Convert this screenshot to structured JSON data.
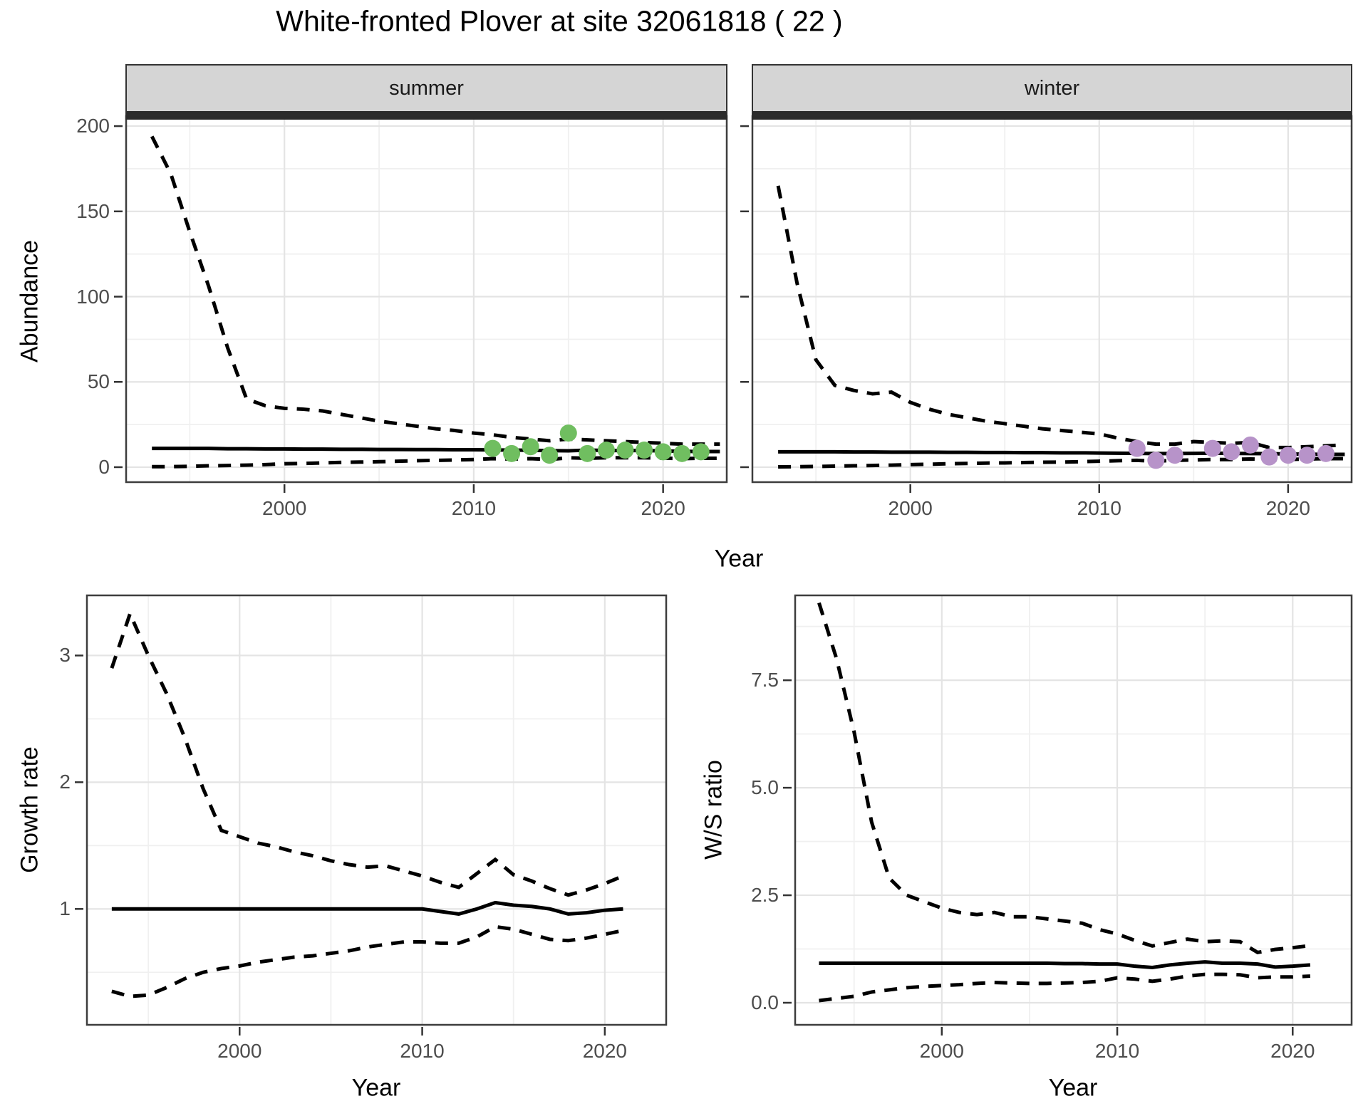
{
  "title": "White-fronted Plover at site 32061818 ( 22 )",
  "facets": {
    "summer": "summer",
    "winter": "winter"
  },
  "axis_titles": {
    "abundance": "Abundance",
    "year": "Year",
    "growth_rate": "Growth rate",
    "ws_ratio": "W/S ratio"
  },
  "colors": {
    "summer_points": "#70BE60",
    "winter_points": "#B793C9",
    "line": "#000000",
    "panel_border": "#3d3d3d",
    "grid_major": "#e4e4e4",
    "grid_minor": "#f0f0f0",
    "strip_bg": "#d5d5d5",
    "tick_text": "#4d4d4d"
  },
  "chart_data": [
    {
      "id": "summer",
      "type": "line",
      "facet_label": "summer",
      "xlabel": "Year",
      "ylabel": "Abundance",
      "xlim": [
        1991.6,
        2023.4
      ],
      "ylim": [
        -9.2,
        206.3
      ],
      "x_major_ticks": [
        2000,
        2010,
        2020
      ],
      "x_tick_labels": [
        "2000",
        "2010",
        "2020"
      ],
      "x_minor_ticks": [
        1995,
        2005,
        2015
      ],
      "y_major_ticks": [
        0,
        50,
        100,
        150,
        200
      ],
      "y_tick_labels": [
        "0",
        "50",
        "100",
        "150",
        "200"
      ],
      "y_minor_ticks": [
        25,
        75,
        125,
        175
      ],
      "series": [
        {
          "name": "median",
          "style": "solid",
          "x": [
            1993,
            1994,
            1995,
            1996,
            1997,
            1998,
            1999,
            2000,
            2001,
            2002,
            2003,
            2004,
            2005,
            2006,
            2007,
            2008,
            2009,
            2010,
            2011,
            2012,
            2013,
            2014,
            2015,
            2016,
            2017,
            2018,
            2019,
            2020,
            2021,
            2022,
            2023
          ],
          "y": [
            11,
            11,
            11,
            11,
            10.8,
            10.8,
            10.7,
            10.7,
            10.6,
            10.6,
            10.5,
            10.5,
            10.4,
            10.4,
            10.3,
            10.3,
            10.2,
            10.2,
            10.1,
            10,
            9.9,
            9.7,
            9.6,
            10,
            9.8,
            9.7,
            9.8,
            9.5,
            9.3,
            9.2,
            9.2
          ]
        },
        {
          "name": "upper_ci",
          "style": "dashed",
          "x": [
            1993,
            1994,
            1995,
            1996,
            1997,
            1998,
            1999,
            2000,
            2001,
            2002,
            2003,
            2004,
            2005,
            2006,
            2007,
            2008,
            2009,
            2010,
            2011,
            2012,
            2013,
            2014,
            2015,
            2016,
            2017,
            2018,
            2019,
            2020,
            2021,
            2022,
            2023
          ],
          "y": [
            194,
            172,
            138,
            106,
            70,
            40,
            36,
            34.5,
            34,
            33,
            31,
            29,
            27,
            25.5,
            24,
            22.5,
            21.5,
            20,
            19,
            17.5,
            16.5,
            15.5,
            16.5,
            16,
            15.5,
            15,
            14.5,
            14,
            13.5,
            13.5,
            13.5
          ]
        },
        {
          "name": "lower_ci",
          "style": "dashed",
          "x": [
            1993,
            1994,
            1995,
            1996,
            1997,
            1998,
            1999,
            2000,
            2001,
            2002,
            2003,
            2004,
            2005,
            2006,
            2007,
            2008,
            2009,
            2010,
            2011,
            2012,
            2013,
            2014,
            2015,
            2016,
            2017,
            2018,
            2019,
            2020,
            2021,
            2022,
            2023
          ],
          "y": [
            0.3,
            0.3,
            0.5,
            0.8,
            1,
            1.2,
            1.5,
            2,
            2.2,
            2.5,
            2.8,
            3,
            3.2,
            3.5,
            3.8,
            4,
            4.2,
            4.5,
            5,
            4.8,
            5,
            4.5,
            5.5,
            5.2,
            5.5,
            5.5,
            5.5,
            5.3,
            5,
            5.2,
            5.2
          ]
        }
      ],
      "points": {
        "name": "observed-count",
        "color": "#70BE60",
        "x": [
          2011,
          2012,
          2013,
          2014,
          2015,
          2016,
          2017,
          2018,
          2019,
          2020,
          2021,
          2022
        ],
        "y": [
          11,
          8,
          12,
          7,
          20,
          8,
          10,
          10,
          10,
          9,
          8,
          9
        ]
      }
    },
    {
      "id": "winter",
      "type": "line",
      "facet_label": "winter",
      "xlabel": "Year",
      "ylabel": "Abundance",
      "xlim": [
        1991.6,
        2023.4
      ],
      "ylim": [
        -9.2,
        206.3
      ],
      "x_major_ticks": [
        2000,
        2010,
        2020
      ],
      "x_tick_labels": [
        "2000",
        "2010",
        "2020"
      ],
      "x_minor_ticks": [
        1995,
        2005,
        2015
      ],
      "y_major_ticks": [
        0,
        50,
        100,
        150,
        200
      ],
      "y_tick_labels": [
        "0",
        "50",
        "100",
        "150",
        "200"
      ],
      "y_minor_ticks": [
        25,
        75,
        125,
        175
      ],
      "series": [
        {
          "name": "median",
          "style": "solid",
          "x": [
            1993,
            1994,
            1995,
            1996,
            1997,
            1998,
            1999,
            2000,
            2001,
            2002,
            2003,
            2004,
            2005,
            2006,
            2007,
            2008,
            2009,
            2010,
            2011,
            2012,
            2013,
            2014,
            2015,
            2016,
            2017,
            2018,
            2019,
            2020,
            2021,
            2022,
            2023
          ],
          "y": [
            9,
            9,
            9,
            9,
            8.9,
            8.9,
            8.8,
            8.8,
            8.8,
            8.7,
            8.7,
            8.6,
            8.6,
            8.5,
            8.5,
            8.4,
            8.4,
            8.3,
            8.2,
            8.1,
            8,
            8,
            8.1,
            8.2,
            8.1,
            8,
            7.9,
            7.7,
            7.6,
            7.5,
            7.5
          ]
        },
        {
          "name": "upper_ci",
          "style": "dashed",
          "x": [
            1993,
            1994,
            1995,
            1996,
            1997,
            1998,
            1999,
            2000,
            2001,
            2002,
            2003,
            2004,
            2005,
            2006,
            2007,
            2008,
            2009,
            2010,
            2011,
            2012,
            2013,
            2014,
            2015,
            2016,
            2017,
            2018,
            2019,
            2020,
            2021,
            2022,
            2023
          ],
          "y": [
            165,
            108,
            63,
            48,
            45,
            43,
            44,
            38,
            34,
            31,
            29,
            27,
            25.5,
            24,
            22.5,
            21.5,
            20.5,
            19.5,
            17,
            15,
            13.5,
            13.5,
            15,
            14.5,
            14,
            14.5,
            11.5,
            11.5,
            12,
            12.5,
            13
          ]
        },
        {
          "name": "lower_ci",
          "style": "dashed",
          "x": [
            1993,
            1994,
            1995,
            1996,
            1997,
            1998,
            1999,
            2000,
            2001,
            2002,
            2003,
            2004,
            2005,
            2006,
            2007,
            2008,
            2009,
            2010,
            2011,
            2012,
            2013,
            2014,
            2015,
            2016,
            2017,
            2018,
            2019,
            2020,
            2021,
            2022,
            2023
          ],
          "y": [
            0.2,
            0.3,
            0.4,
            0.6,
            0.8,
            1,
            1.2,
            1.5,
            1.7,
            2,
            2.2,
            2.4,
            2.5,
            2.7,
            2.9,
            3,
            3.2,
            3.5,
            3.8,
            4,
            3.5,
            4,
            4.2,
            4.5,
            4.5,
            4.8,
            4.5,
            4.5,
            4.8,
            5,
            5
          ]
        }
      ],
      "points": {
        "name": "observed-count",
        "color": "#B793C9",
        "x": [
          2012,
          2013,
          2014,
          2016,
          2017,
          2018,
          2019,
          2020,
          2021,
          2022
        ],
        "y": [
          11,
          4,
          7,
          11,
          9,
          13,
          6,
          7,
          7,
          8
        ]
      }
    },
    {
      "id": "growth",
      "type": "line",
      "facet_label": "",
      "xlabel": "Year",
      "ylabel": "Growth rate",
      "xlim": [
        1991.6,
        2023.4
      ],
      "ylim": [
        0.08,
        3.48
      ],
      "x_major_ticks": [
        2000,
        2010,
        2020
      ],
      "x_tick_labels": [
        "2000",
        "2010",
        "2020"
      ],
      "x_minor_ticks": [
        1995,
        2005,
        2015
      ],
      "y_major_ticks": [
        1,
        2,
        3
      ],
      "y_tick_labels": [
        "1",
        "2",
        "3"
      ],
      "y_minor_ticks": [
        0.5,
        1.5,
        2.5
      ],
      "series": [
        {
          "name": "median",
          "style": "solid",
          "x": [
            1993,
            1994,
            1995,
            1996,
            1997,
            1998,
            1999,
            2000,
            2001,
            2002,
            2003,
            2004,
            2005,
            2006,
            2007,
            2008,
            2009,
            2010,
            2011,
            2012,
            2013,
            2014,
            2015,
            2016,
            2017,
            2018,
            2019,
            2020,
            2021
          ],
          "y": [
            1,
            1,
            1,
            1,
            1,
            1,
            1,
            1,
            1,
            1,
            1,
            1,
            1,
            1,
            1,
            1,
            1,
            1,
            0.98,
            0.96,
            1,
            1.05,
            1.03,
            1.02,
            1,
            0.96,
            0.97,
            0.99,
            1
          ]
        },
        {
          "name": "upper_ci",
          "style": "dashed",
          "x": [
            1993,
            1994,
            1995,
            1996,
            1997,
            1998,
            1999,
            2000,
            2001,
            2002,
            2003,
            2004,
            2005,
            2006,
            2007,
            2008,
            2009,
            2010,
            2011,
            2012,
            2013,
            2014,
            2015,
            2016,
            2017,
            2018,
            2019,
            2020,
            2021
          ],
          "y": [
            2.9,
            3.33,
            3.0,
            2.7,
            2.35,
            1.95,
            1.62,
            1.57,
            1.52,
            1.49,
            1.45,
            1.42,
            1.38,
            1.35,
            1.33,
            1.34,
            1.3,
            1.26,
            1.21,
            1.17,
            1.28,
            1.39,
            1.27,
            1.22,
            1.16,
            1.11,
            1.15,
            1.2,
            1.26
          ]
        },
        {
          "name": "lower_ci",
          "style": "dashed",
          "x": [
            1993,
            1994,
            1995,
            1996,
            1997,
            1998,
            1999,
            2000,
            2001,
            2002,
            2003,
            2004,
            2005,
            2006,
            2007,
            2008,
            2009,
            2010,
            2011,
            2012,
            2013,
            2014,
            2015,
            2016,
            2017,
            2018,
            2019,
            2020,
            2021
          ],
          "y": [
            0.35,
            0.31,
            0.32,
            0.38,
            0.45,
            0.5,
            0.53,
            0.55,
            0.58,
            0.6,
            0.62,
            0.63,
            0.65,
            0.67,
            0.7,
            0.72,
            0.74,
            0.74,
            0.73,
            0.73,
            0.78,
            0.86,
            0.84,
            0.8,
            0.76,
            0.75,
            0.77,
            0.8,
            0.83
          ]
        }
      ],
      "points": null
    },
    {
      "id": "ws",
      "type": "line",
      "facet_label": "",
      "xlabel": "Year",
      "ylabel": "W/S ratio",
      "xlim": [
        1991.6,
        2023.4
      ],
      "ylim": [
        -0.53,
        9.49
      ],
      "x_major_ticks": [
        2000,
        2010,
        2020
      ],
      "x_tick_labels": [
        "2000",
        "2010",
        "2020"
      ],
      "x_minor_ticks": [
        1995,
        2005,
        2015
      ],
      "y_major_ticks": [
        0,
        2.5,
        5.0,
        7.5
      ],
      "y_tick_labels": [
        "0.0",
        "2.5",
        "5.0",
        "7.5"
      ],
      "y_minor_ticks": [
        1.25,
        3.75,
        6.25,
        8.75
      ],
      "series": [
        {
          "name": "median",
          "style": "solid",
          "x": [
            1993,
            1994,
            1995,
            1996,
            1997,
            1998,
            1999,
            2000,
            2001,
            2002,
            2003,
            2004,
            2005,
            2006,
            2007,
            2008,
            2009,
            2010,
            2011,
            2012,
            2013,
            2014,
            2015,
            2016,
            2017,
            2018,
            2019,
            2020,
            2021
          ],
          "y": [
            0.92,
            0.92,
            0.92,
            0.92,
            0.92,
            0.92,
            0.92,
            0.92,
            0.92,
            0.92,
            0.92,
            0.92,
            0.92,
            0.92,
            0.91,
            0.91,
            0.9,
            0.9,
            0.85,
            0.82,
            0.88,
            0.92,
            0.95,
            0.92,
            0.92,
            0.9,
            0.83,
            0.85,
            0.88
          ]
        },
        {
          "name": "upper_ci",
          "style": "dashed",
          "x": [
            1993,
            1994,
            1995,
            1996,
            1997,
            1998,
            1999,
            2000,
            2001,
            2002,
            2003,
            2004,
            2005,
            2006,
            2007,
            2008,
            2009,
            2010,
            2011,
            2012,
            2013,
            2014,
            2015,
            2016,
            2017,
            2018,
            2019,
            2020,
            2021
          ],
          "y": [
            9.3,
            8.0,
            6.3,
            4.2,
            2.9,
            2.5,
            2.35,
            2.2,
            2.1,
            2.05,
            2.1,
            2.0,
            2.0,
            1.95,
            1.9,
            1.85,
            1.7,
            1.6,
            1.45,
            1.32,
            1.4,
            1.48,
            1.42,
            1.44,
            1.42,
            1.17,
            1.24,
            1.28,
            1.33
          ]
        },
        {
          "name": "lower_ci",
          "style": "dashed",
          "x": [
            1993,
            1994,
            1995,
            1996,
            1997,
            1998,
            1999,
            2000,
            2001,
            2002,
            2003,
            2004,
            2005,
            2006,
            2007,
            2008,
            2009,
            2010,
            2011,
            2012,
            2013,
            2014,
            2015,
            2016,
            2017,
            2018,
            2019,
            2020,
            2021
          ],
          "y": [
            0.05,
            0.1,
            0.15,
            0.25,
            0.3,
            0.35,
            0.38,
            0.4,
            0.42,
            0.45,
            0.47,
            0.46,
            0.45,
            0.45,
            0.46,
            0.47,
            0.5,
            0.58,
            0.55,
            0.5,
            0.55,
            0.62,
            0.66,
            0.66,
            0.65,
            0.58,
            0.6,
            0.6,
            0.62
          ]
        }
      ],
      "points": null
    }
  ]
}
